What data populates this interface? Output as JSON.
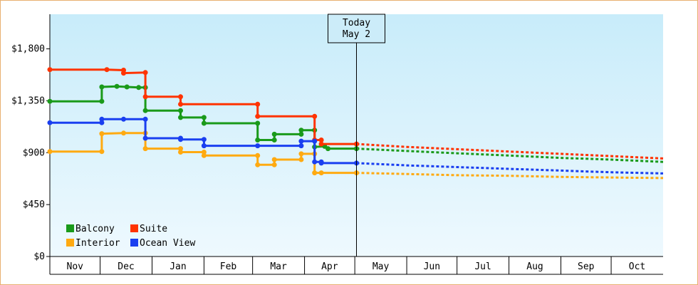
{
  "chart_data": {
    "type": "line",
    "title": "",
    "xlabel": "",
    "ylabel": "",
    "ylim": [
      0,
      2100
    ],
    "yticks": [
      {
        "value": 0,
        "label": "$0"
      },
      {
        "value": 450,
        "label": "$450"
      },
      {
        "value": 900,
        "label": "$900"
      },
      {
        "value": 1350,
        "label": "$1,350"
      },
      {
        "value": 1800,
        "label": "$1,800"
      }
    ],
    "xlim": [
      "2023-11-01",
      "2024-11-01"
    ],
    "months": [
      {
        "label": "Nov",
        "start": "2023-11-01",
        "end": "2023-12-01"
      },
      {
        "label": "Dec",
        "start": "2023-12-01",
        "end": "2024-01-01"
      },
      {
        "label": "Jan",
        "start": "2024-01-01",
        "end": "2024-02-01"
      },
      {
        "label": "Feb",
        "start": "2024-02-01",
        "end": "2024-03-01"
      },
      {
        "label": "Mar",
        "start": "2024-03-01",
        "end": "2024-04-01"
      },
      {
        "label": "Apr",
        "start": "2024-04-01",
        "end": "2024-05-01"
      },
      {
        "label": "May",
        "start": "2024-05-01",
        "end": "2024-06-01"
      },
      {
        "label": "Jun",
        "start": "2024-06-01",
        "end": "2024-07-01"
      },
      {
        "label": "Jul",
        "start": "2024-07-01",
        "end": "2024-08-01"
      },
      {
        "label": "Aug",
        "start": "2024-08-01",
        "end": "2024-09-01"
      },
      {
        "label": "Sep",
        "start": "2024-09-01",
        "end": "2024-10-01"
      },
      {
        "label": "Oct",
        "start": "2024-10-01",
        "end": "2024-11-01"
      }
    ],
    "today": {
      "date": "2024-05-02",
      "label_line1": "Today",
      "label_line2": "May 2"
    },
    "background_gradient": [
      "#c8ecfa",
      "#eef9fe"
    ],
    "series": [
      {
        "name": "Balcony",
        "color": "#1a9a1a",
        "points": [
          [
            "2023-11-01",
            1345
          ],
          [
            "2023-12-02",
            1345
          ],
          [
            "2023-12-02",
            1470
          ],
          [
            "2023-12-11",
            1475
          ],
          [
            "2023-12-17",
            1470
          ],
          [
            "2023-12-24",
            1465
          ],
          [
            "2023-12-28",
            1465
          ],
          [
            "2023-12-28",
            1265
          ],
          [
            "2024-01-18",
            1265
          ],
          [
            "2024-01-18",
            1205
          ],
          [
            "2024-02-01",
            1205
          ],
          [
            "2024-02-01",
            1155
          ],
          [
            "2024-03-04",
            1155
          ],
          [
            "2024-03-04",
            1010
          ],
          [
            "2024-03-14",
            1010
          ],
          [
            "2024-03-14",
            1060
          ],
          [
            "2024-03-30",
            1060
          ],
          [
            "2024-03-30",
            1095
          ],
          [
            "2024-04-07",
            1095
          ],
          [
            "2024-04-07",
            950
          ],
          [
            "2024-04-13",
            955
          ],
          [
            "2024-04-15",
            935
          ],
          [
            "2024-05-02",
            935
          ]
        ],
        "forecast": [
          [
            "2024-05-02",
            935
          ],
          [
            "2024-06-01",
            915
          ],
          [
            "2024-07-01",
            895
          ],
          [
            "2024-08-01",
            875
          ],
          [
            "2024-09-01",
            855
          ],
          [
            "2024-10-01",
            840
          ],
          [
            "2024-11-01",
            820
          ]
        ]
      },
      {
        "name": "Suite",
        "color": "#ff3300",
        "points": [
          [
            "2023-11-01",
            1620
          ],
          [
            "2023-12-05",
            1620
          ],
          [
            "2023-12-15",
            1615
          ],
          [
            "2023-12-15",
            1590
          ],
          [
            "2023-12-28",
            1595
          ],
          [
            "2023-12-28",
            1385
          ],
          [
            "2024-01-18",
            1385
          ],
          [
            "2024-01-18",
            1320
          ],
          [
            "2024-03-04",
            1320
          ],
          [
            "2024-03-04",
            1215
          ],
          [
            "2024-04-07",
            1215
          ],
          [
            "2024-04-07",
            1010
          ],
          [
            "2024-04-11",
            1010
          ],
          [
            "2024-04-11",
            975
          ],
          [
            "2024-05-02",
            975
          ]
        ],
        "forecast": [
          [
            "2024-05-02",
            975
          ],
          [
            "2024-06-01",
            950
          ],
          [
            "2024-07-01",
            930
          ],
          [
            "2024-08-01",
            910
          ],
          [
            "2024-09-01",
            890
          ],
          [
            "2024-10-01",
            870
          ],
          [
            "2024-11-01",
            850
          ]
        ]
      },
      {
        "name": "Interior",
        "color": "#ffaa11",
        "points": [
          [
            "2023-11-01",
            910
          ],
          [
            "2023-12-02",
            910
          ],
          [
            "2023-12-02",
            1065
          ],
          [
            "2023-12-15",
            1070
          ],
          [
            "2023-12-28",
            1070
          ],
          [
            "2023-12-28",
            935
          ],
          [
            "2024-01-18",
            935
          ],
          [
            "2024-01-18",
            905
          ],
          [
            "2024-02-01",
            905
          ],
          [
            "2024-02-01",
            875
          ],
          [
            "2024-03-04",
            875
          ],
          [
            "2024-03-04",
            795
          ],
          [
            "2024-03-14",
            795
          ],
          [
            "2024-03-14",
            840
          ],
          [
            "2024-03-30",
            840
          ],
          [
            "2024-03-30",
            890
          ],
          [
            "2024-04-07",
            890
          ],
          [
            "2024-04-07",
            725
          ],
          [
            "2024-04-11",
            725
          ],
          [
            "2024-05-02",
            725
          ]
        ],
        "forecast": [
          [
            "2024-05-02",
            725
          ],
          [
            "2024-06-01",
            715
          ],
          [
            "2024-07-01",
            705
          ],
          [
            "2024-08-01",
            700
          ],
          [
            "2024-09-01",
            690
          ],
          [
            "2024-10-01",
            685
          ],
          [
            "2024-11-01",
            680
          ]
        ]
      },
      {
        "name": "Ocean View",
        "color": "#1a3ff0",
        "points": [
          [
            "2023-11-01",
            1160
          ],
          [
            "2023-12-02",
            1160
          ],
          [
            "2023-12-02",
            1190
          ],
          [
            "2023-12-15",
            1190
          ],
          [
            "2023-12-28",
            1190
          ],
          [
            "2023-12-28",
            1025
          ],
          [
            "2024-01-18",
            1025
          ],
          [
            "2024-01-18",
            1015
          ],
          [
            "2024-02-01",
            1015
          ],
          [
            "2024-02-01",
            960
          ],
          [
            "2024-03-04",
            960
          ],
          [
            "2024-03-30",
            960
          ],
          [
            "2024-03-30",
            1000
          ],
          [
            "2024-04-07",
            1000
          ],
          [
            "2024-04-07",
            820
          ],
          [
            "2024-04-11",
            820
          ],
          [
            "2024-04-11",
            810
          ],
          [
            "2024-05-02",
            810
          ]
        ],
        "forecast": [
          [
            "2024-05-02",
            810
          ],
          [
            "2024-06-01",
            790
          ],
          [
            "2024-07-01",
            775
          ],
          [
            "2024-08-01",
            760
          ],
          [
            "2024-09-01",
            745
          ],
          [
            "2024-10-01",
            730
          ],
          [
            "2024-11-01",
            720
          ]
        ]
      }
    ],
    "legend": {
      "placement": "bottom-left",
      "order": [
        "Balcony",
        "Suite",
        "Interior",
        "Ocean View"
      ]
    }
  }
}
